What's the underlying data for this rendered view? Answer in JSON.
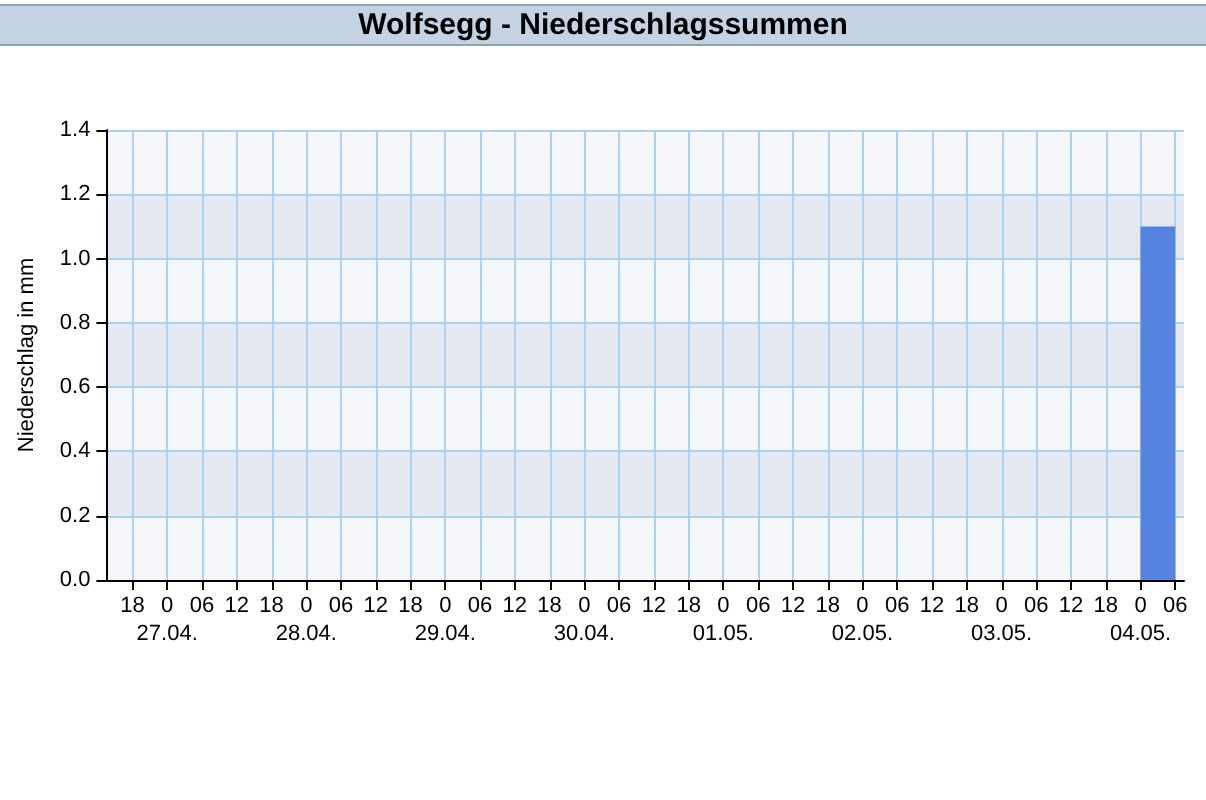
{
  "chart_data": {
    "type": "histogram",
    "title": "Wolfsegg - Niederschlagssummen",
    "ylabel": "Niederschlag in mm",
    "bins": [
      "--05-04T00:00",
      "--05-04T06:00"
    ],
    "values": [
      1.1
    ],
    "color": "#5683e0",
    "xlim": [
      "--04-26T13:30",
      "--05-04T07:30"
    ],
    "xticks": [
      {
        "value": "--04-26T18:00",
        "label": "18"
      },
      {
        "value": "--04-27T00:00",
        "label": "0\n27.04."
      },
      {
        "value": "--04-27T06:00",
        "label": "06"
      },
      {
        "value": "--04-27T12:00",
        "label": "12"
      },
      {
        "value": "--04-27T18:00",
        "label": "18"
      },
      {
        "value": "--04-28T00:00",
        "label": "0\n28.04."
      },
      {
        "value": "--04-28T06:00",
        "label": "06"
      },
      {
        "value": "--04-28T12:00",
        "label": "12"
      },
      {
        "value": "--04-28T18:00",
        "label": "18"
      },
      {
        "value": "--04-29T00:00",
        "label": "0\n29.04."
      },
      {
        "value": "--04-29T06:00",
        "label": "06"
      },
      {
        "value": "--04-29T12:00",
        "label": "12"
      },
      {
        "value": "--04-29T18:00",
        "label": "18"
      },
      {
        "value": "--04-30T00:00",
        "label": "0\n30.04."
      },
      {
        "value": "--04-30T06:00",
        "label": "06"
      },
      {
        "value": "--04-30T12:00",
        "label": "12"
      },
      {
        "value": "--04-30T18:00",
        "label": "18"
      },
      {
        "value": "--05-01T00:00",
        "label": "0\n01.05."
      },
      {
        "value": "--05-01T06:00",
        "label": "06"
      },
      {
        "value": "--05-01T12:00",
        "label": "12"
      },
      {
        "value": "--05-01T18:00",
        "label": "18"
      },
      {
        "value": "--05-02T00:00",
        "label": "0\n02.05."
      },
      {
        "value": "--05-02T06:00",
        "label": "06"
      },
      {
        "value": "--05-02T12:00",
        "label": "12"
      },
      {
        "value": "--05-02T18:00",
        "label": "18"
      },
      {
        "value": "--05-03T00:00",
        "label": "0\n03.05."
      },
      {
        "value": "--05-03T06:00",
        "label": "06"
      },
      {
        "value": "--05-03T12:00",
        "label": "12"
      },
      {
        "value": "--05-03T18:00",
        "label": "18"
      },
      {
        "value": "--05-04T00:00",
        "label": "0\n04.05."
      },
      {
        "value": "--05-04T06:00",
        "label": "06"
      }
    ],
    "ylim": [
      0,
      1.4
    ],
    "yticks": [
      {
        "value": 0,
        "label": "0.0"
      },
      {
        "value": 0.2,
        "label": "0.2"
      },
      {
        "value": 0.4,
        "label": "0.4"
      },
      {
        "value": 0.6,
        "label": "0.6"
      },
      {
        "value": 0.8,
        "label": "0.8"
      },
      {
        "value": 1,
        "label": "1.0"
      },
      {
        "value": 1.2,
        "label": "1.2"
      },
      {
        "value": 1.4,
        "label": "1.4"
      }
    ],
    "grid": true
  }
}
